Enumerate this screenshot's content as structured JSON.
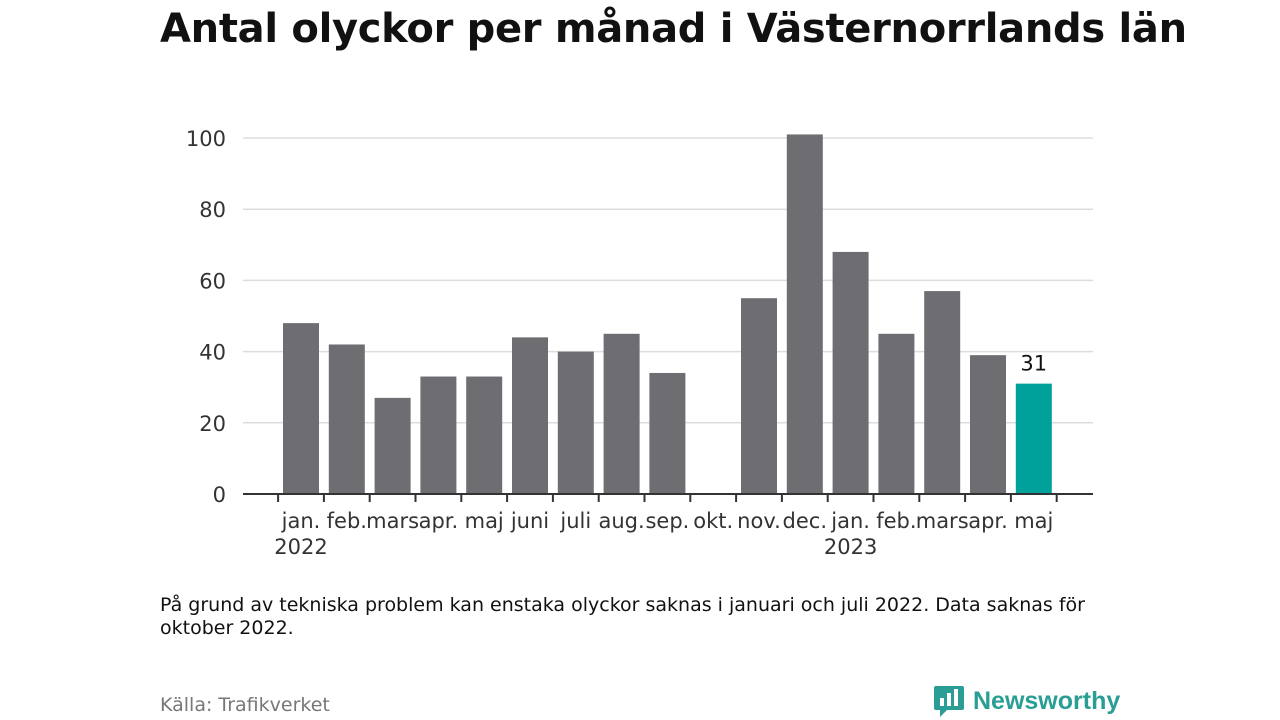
{
  "chart_data": {
    "type": "bar",
    "title": "Antal olyckor per månad i Västernorrlands län",
    "categories": [
      "jan.",
      "feb.",
      "mars",
      "apr.",
      "maj",
      "juni",
      "juli",
      "aug.",
      "sep.",
      "okt.",
      "nov.",
      "dec.",
      "jan.",
      "feb.",
      "mars",
      "apr.",
      "maj"
    ],
    "year_labels": [
      {
        "index": 0,
        "label": "2022"
      },
      {
        "index": 12,
        "label": "2023"
      }
    ],
    "values": [
      48,
      42,
      27,
      33,
      33,
      44,
      40,
      45,
      34,
      null,
      55,
      101,
      68,
      45,
      57,
      39,
      31
    ],
    "highlight_index": 16,
    "highlight_label": "31",
    "yticks": [
      0,
      20,
      40,
      60,
      80,
      100
    ],
    "ylim": [
      0,
      100
    ],
    "grid": true,
    "xlabel": "",
    "ylabel": ""
  },
  "note": "På grund av tekniska problem kan enstaka olyckor saknas i januari och juli 2022. Data saknas för oktober 2022.",
  "source": "Källa: Trafikverket",
  "brand": {
    "name": "Newsworthy",
    "icon": "newsworthy-logo-icon"
  },
  "colors": {
    "bar": "#6e6d72",
    "highlight": "#00a19a",
    "grid": "#dddddd",
    "axis": "#333333",
    "tick_label": "#333333",
    "brand": "#2a9d94"
  }
}
